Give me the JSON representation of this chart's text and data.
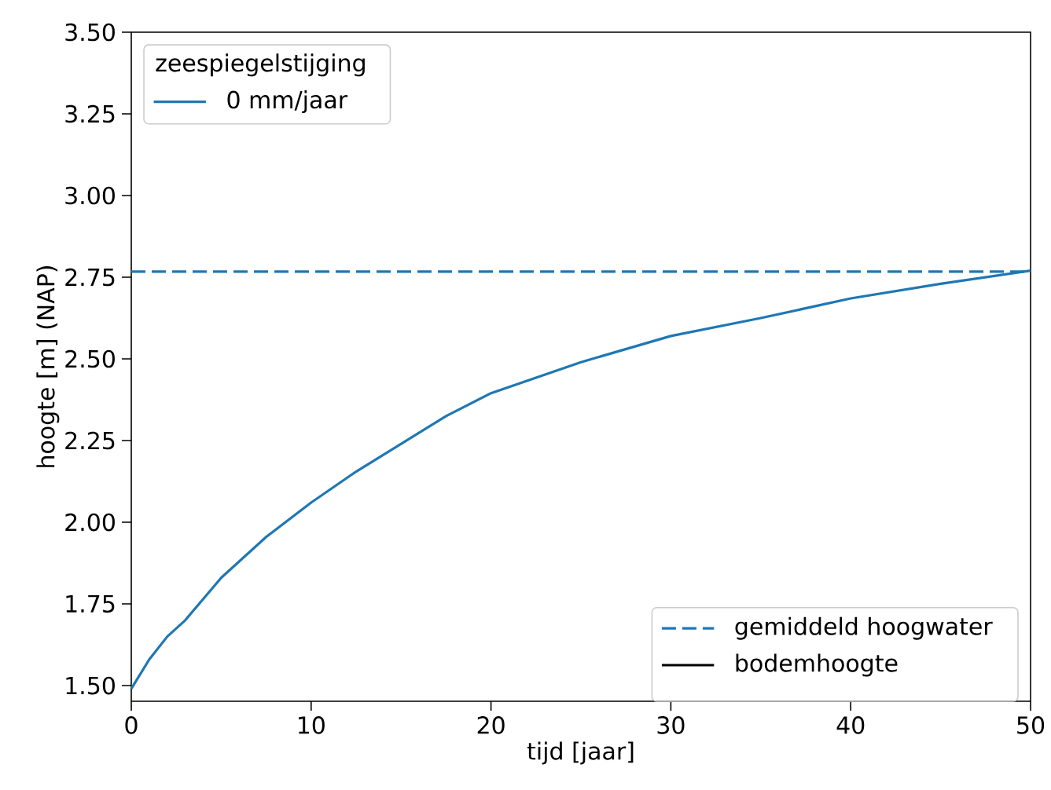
{
  "chart_data": {
    "type": "line",
    "xlabel": "tijd [jaar]",
    "ylabel": "hoogte [m] (NAP)",
    "legend_title": "zeespiegelstijging",
    "legend": "top left",
    "marker": "none",
    "line_style": "solid",
    "xlim": [
      0,
      50
    ],
    "ylim": [
      1.452,
      3.5
    ],
    "xticks": [
      0,
      10,
      20,
      30,
      40,
      50
    ],
    "yticks": [
      {
        "value": 1.5,
        "label": "1.50"
      },
      {
        "value": 1.75,
        "label": "1.75"
      },
      {
        "value": 2.0,
        "label": "2.00"
      },
      {
        "value": 2.25,
        "label": "2.25"
      },
      {
        "value": 2.5,
        "label": "2.50"
      },
      {
        "value": 2.75,
        "label": "2.75"
      },
      {
        "value": 3.0,
        "label": "3.00"
      },
      {
        "value": 3.25,
        "label": "3.25"
      },
      {
        "value": 3.5,
        "label": "3.50"
      }
    ],
    "x": [
      0,
      1,
      2,
      3,
      5,
      7.5,
      10,
      12.5,
      15,
      17.5,
      20,
      25,
      30,
      35,
      40,
      45,
      50
    ],
    "series": [
      {
        "name": "0 mm/jaar",
        "color": "#1f77b4",
        "values": [
          1.49,
          1.58,
          1.65,
          1.7,
          1.83,
          1.955,
          2.06,
          2.155,
          2.24,
          2.325,
          2.395,
          2.49,
          2.57,
          2.625,
          2.685,
          2.73,
          2.77
        ]
      }
    ],
    "ref_lines": [
      {
        "axis": "y",
        "value": 2.767,
        "label": "gemiddeld hoogwater",
        "color": "#1f77b4",
        "line_style": "dashed"
      }
    ],
    "annotations": [
      "bodemhoogte"
    ]
  }
}
